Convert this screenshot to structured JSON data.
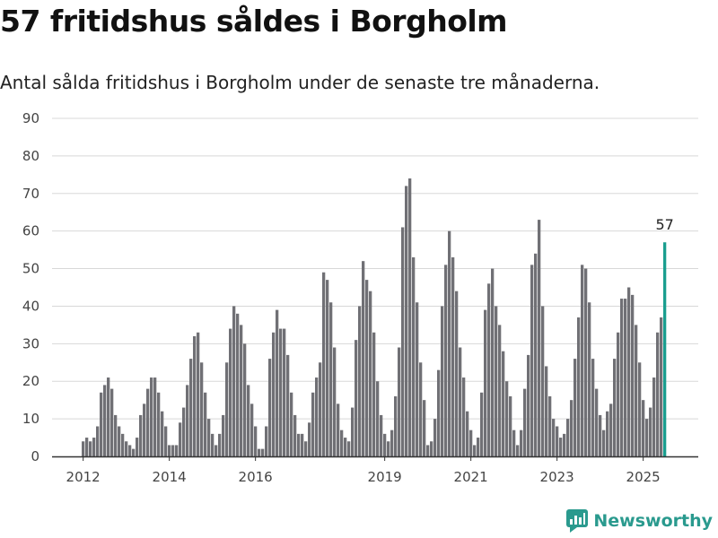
{
  "title": "57 fritidshus såldes i Borgholm",
  "subtitle": "Antal sålda fritidshus i Borgholm under de senaste tre månaderna.",
  "brand": {
    "name": "Newsworthy",
    "icon": "newsworthy-logo-icon"
  },
  "colors": {
    "bar": "#707075",
    "highlight": "#1a9e8f",
    "grid": "#d8d8d8",
    "axis": "#333333"
  },
  "chart_data": {
    "type": "bar",
    "x_unit": "month",
    "start": "2012-01",
    "ylim": [
      0,
      90
    ],
    "yticks": [
      0,
      10,
      20,
      30,
      40,
      50,
      60,
      70,
      80,
      90
    ],
    "xticks": [
      "2012",
      "2014",
      "2016",
      "2019",
      "2021",
      "2023",
      "2025"
    ],
    "grid": true,
    "values": [
      4,
      5,
      4,
      5,
      8,
      17,
      19,
      21,
      18,
      11,
      8,
      6,
      4,
      3,
      2,
      5,
      11,
      14,
      18,
      21,
      21,
      17,
      12,
      8,
      3,
      3,
      3,
      9,
      13,
      19,
      26,
      32,
      33,
      25,
      17,
      10,
      6,
      3,
      6,
      11,
      25,
      34,
      40,
      38,
      35,
      30,
      19,
      14,
      8,
      2,
      2,
      8,
      26,
      33,
      39,
      34,
      34,
      27,
      17,
      11,
      6,
      6,
      4,
      9,
      17,
      21,
      25,
      49,
      47,
      41,
      29,
      14,
      7,
      5,
      4,
      13,
      31,
      40,
      52,
      47,
      44,
      33,
      20,
      11,
      6,
      4,
      7,
      16,
      29,
      61,
      72,
      74,
      53,
      41,
      25,
      15,
      3,
      4,
      10,
      23,
      40,
      51,
      60,
      53,
      44,
      29,
      21,
      12,
      7,
      3,
      5,
      17,
      39,
      46,
      50,
      40,
      35,
      28,
      20,
      16,
      7,
      3,
      7,
      18,
      27,
      51,
      54,
      63,
      40,
      24,
      16,
      10,
      8,
      5,
      6,
      10,
      15,
      26,
      37,
      51,
      50,
      41,
      26,
      18,
      11,
      7,
      12,
      14,
      26,
      33,
      42,
      42,
      45,
      43,
      35,
      25,
      15,
      10,
      13,
      21,
      33,
      37,
      57
    ],
    "highlight": {
      "value": 57,
      "label": "57"
    }
  }
}
